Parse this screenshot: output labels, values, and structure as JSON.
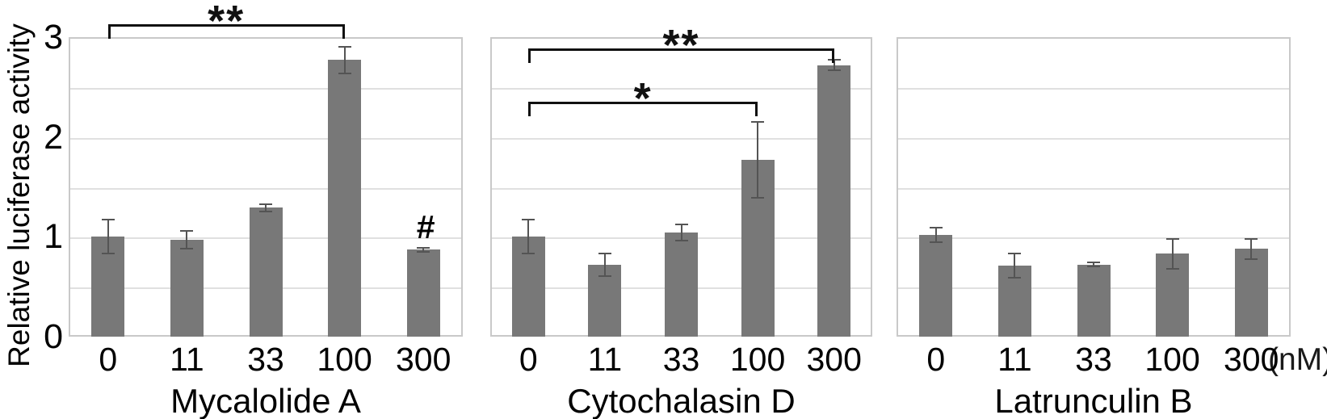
{
  "figure": {
    "y_axis_label": "Relative luciferase activity",
    "unit_label": "(nM)"
  },
  "colors": {
    "bar": "#787878",
    "error_bar": "#545454",
    "gridline": "#e0e0e0",
    "panel_border": "#c9c9c9",
    "bracket": "#111111",
    "text": "#1a1a1a",
    "background": "#ffffff"
  },
  "chart_data": {
    "type": "bar",
    "title": "",
    "xlabel": "",
    "ylabel": "Relative luciferase activity",
    "x_unit_label": "(nM)",
    "ylim": [
      0,
      3
    ],
    "y_ticks": [
      0,
      1,
      2,
      3
    ],
    "gridline_step": 0.5,
    "grid": true,
    "legend": "none",
    "categories": [
      "0",
      "11",
      "33",
      "100",
      "300"
    ],
    "panels": [
      {
        "name": "Mycalolide A",
        "values": [
          1.0,
          0.97,
          1.29,
          2.77,
          0.87
        ],
        "errors": [
          0.17,
          0.09,
          0.04,
          0.13,
          0.02
        ],
        "significance_brackets": [
          {
            "from_index": 0,
            "to_index": 3,
            "label": "**",
            "y": 3.13
          }
        ],
        "point_annotations": [
          {
            "index": 4,
            "text": "#"
          }
        ]
      },
      {
        "name": "Cytochalasin D",
        "values": [
          1.0,
          0.72,
          1.04,
          1.77,
          2.72
        ],
        "errors": [
          0.17,
          0.11,
          0.08,
          0.38,
          0.05
        ],
        "significance_brackets": [
          {
            "from_index": 0,
            "to_index": 4,
            "label": "**",
            "y": 2.89
          },
          {
            "from_index": 0,
            "to_index": 3,
            "label": "*",
            "y": 2.35
          }
        ],
        "point_annotations": []
      },
      {
        "name": "Latrunculin B",
        "values": [
          1.02,
          0.71,
          0.72,
          0.83,
          0.88
        ],
        "errors": [
          0.07,
          0.12,
          0.02,
          0.15,
          0.1
        ],
        "significance_brackets": [],
        "point_annotations": []
      }
    ]
  }
}
